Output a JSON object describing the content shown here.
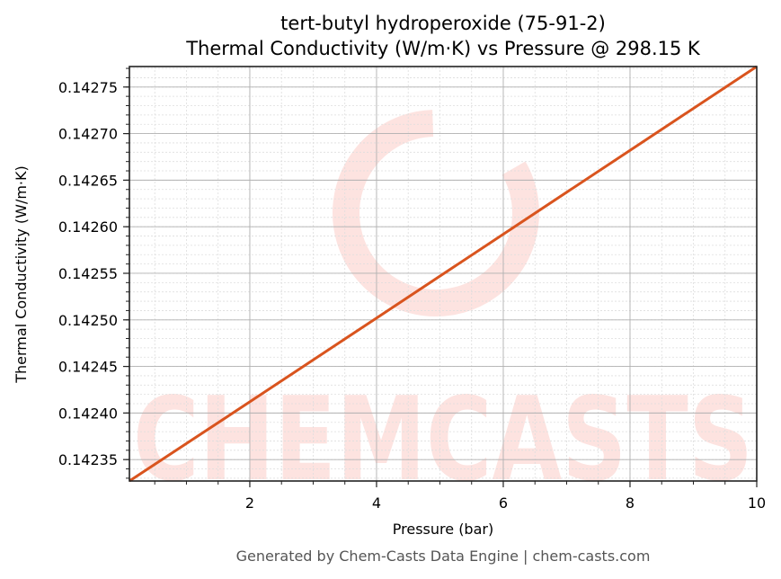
{
  "figure": {
    "title_line1": "tert-butyl hydroperoxide (75-91-2)",
    "title_line2": "Thermal Conductivity (W/m·K) vs Pressure @ 298.15 K",
    "footer": "Generated by Chem-Casts Data Engine | chem-casts.com",
    "watermark_text": "CHEMCASTS"
  },
  "colors": {
    "line": "#D9541E",
    "watermark": "#FDE3E0",
    "major_grid": "#B0B0B0",
    "minor_grid": "#DDDDDD",
    "axis": "#222222",
    "footer_text": "#555555"
  },
  "chart_data": {
    "type": "line",
    "title": "tert-butyl hydroperoxide (75-91-2)\nThermal Conductivity (W/m·K) vs Pressure @ 298.15 K",
    "xlabel": "Pressure (bar)",
    "ylabel": "Thermal Conductivity (W/m·K)",
    "xlim": [
      0.1,
      10
    ],
    "ylim": [
      0.142327,
      0.142772
    ],
    "x_ticks": [
      2,
      4,
      6,
      8,
      10
    ],
    "x_tick_labels": [
      "2",
      "4",
      "6",
      "8",
      "10"
    ],
    "y_ticks": [
      0.14235,
      0.1424,
      0.14245,
      0.1425,
      0.14255,
      0.1426,
      0.14265,
      0.1427,
      0.14275
    ],
    "y_tick_labels": [
      "0.14235",
      "0.14240",
      "0.14245",
      "0.14250",
      "0.14255",
      "0.14260",
      "0.14265",
      "0.14270",
      "0.14275"
    ],
    "x_minor_step": 0.5,
    "y_minor_step": 1e-05,
    "grid": true,
    "legend": null,
    "series": [
      {
        "name": "Thermal Conductivity",
        "x": [
          0.1,
          2,
          4,
          6,
          8,
          10
        ],
        "values": [
          0.142327,
          0.142412,
          0.142502,
          0.142592,
          0.142682,
          0.142772
        ]
      }
    ]
  }
}
